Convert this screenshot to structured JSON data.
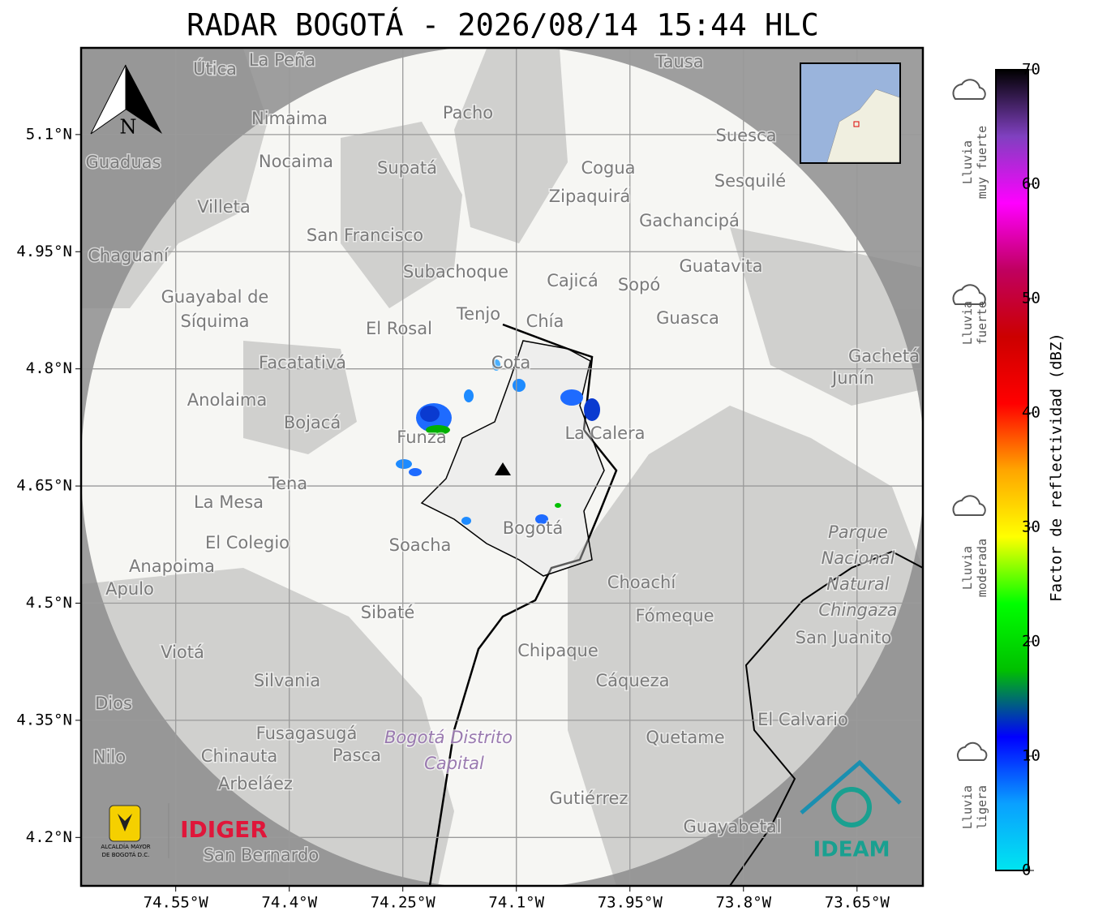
{
  "title": "RADAR BOGOTÁ - 2026/08/14 15:44 HLC",
  "map": {
    "lonlim": [
      -74.675,
      -73.563
    ],
    "latlim": [
      4.138,
      5.211
    ],
    "xticks": [
      {
        "value": -74.55,
        "label": "74.55°W"
      },
      {
        "value": -74.4,
        "label": "74.4°W"
      },
      {
        "value": -74.25,
        "label": "74.25°W"
      },
      {
        "value": -74.1,
        "label": "74.1°W"
      },
      {
        "value": -73.95,
        "label": "73.95°W"
      },
      {
        "value": -73.8,
        "label": "73.8°W"
      },
      {
        "value": -73.65,
        "label": "73.65°W"
      }
    ],
    "yticks": [
      {
        "value": 5.1,
        "label": "5.1°N"
      },
      {
        "value": 4.95,
        "label": "4.95°N"
      },
      {
        "value": 4.8,
        "label": "4.8°N"
      },
      {
        "value": 4.65,
        "label": "4.65°N"
      },
      {
        "value": 4.5,
        "label": "4.5°N"
      },
      {
        "value": 4.35,
        "label": "4.35°N"
      },
      {
        "value": 4.2,
        "label": "4.2°N"
      }
    ],
    "places": [
      "La Peña",
      "Útica",
      "Tausa",
      "Pacho",
      "Nimaima",
      "Suesca",
      "Guaduas",
      "Nocaima",
      "Supatá",
      "Cogua",
      "Sesquilé",
      "Zipaquirá",
      "Villeta",
      "Gachancipá",
      "San Francisco",
      "Chaguaní",
      "Guatavita",
      "Subachoque",
      "Cajicá",
      "Sopó",
      "Guayabal de",
      "Síquima",
      "Tenjo",
      "Guasca",
      "Chía",
      "El Rosal",
      "Gachetá",
      "Facatativá",
      "Cota",
      "Junín",
      "Anolaima",
      "Bojacá",
      "La Calera",
      "Funza",
      "Tena",
      "La Mesa",
      "Bogotá",
      "El Colegio",
      "Soacha",
      "Parque",
      "Nacional",
      "Natural",
      "Chingaza",
      "Anapoima",
      "Apulo",
      "Choachí",
      "Sibaté",
      "Fómeque",
      "San Juanito",
      "Viotá",
      "Chipaque",
      "Silvania",
      "Cáqueza",
      "Dios",
      "El Calvario",
      "Fusagasugá",
      "Bogotá Distrito",
      "Capital",
      "Quetame",
      "Nilo",
      "Chinauta",
      "Pasca",
      "Arbeláez",
      "Gutiérrez",
      "Guayabetal",
      "San Bernardo"
    ],
    "north": "N"
  },
  "colorbar": {
    "label": "Factor de reflectividad (dBZ)",
    "lim": [
      0,
      70
    ],
    "ticks": [
      0,
      10,
      20,
      30,
      40,
      50,
      60,
      70
    ],
    "colors": [
      "#00e5f0",
      "#0aa0ff",
      "#0000ff",
      "#00c000",
      "#00ff00",
      "#ffff00",
      "#ffa500",
      "#ff0000",
      "#cc0000",
      "#c00060",
      "#ff00ff",
      "#8040c0",
      "#000000"
    ],
    "categories": [
      [
        "Lluvia",
        "muy fuerte"
      ],
      [
        "Lluvia",
        "fuerte"
      ],
      [
        "Lluvia",
        "moderada"
      ],
      [
        "Lluvia",
        "ligera"
      ]
    ]
  },
  "logos": {
    "idiger": "IDIGER",
    "ideam": "IDEAM",
    "alcaldia": [
      "ALCALDÍA MAYOR",
      "DE BOGOTÁ D.C."
    ]
  }
}
